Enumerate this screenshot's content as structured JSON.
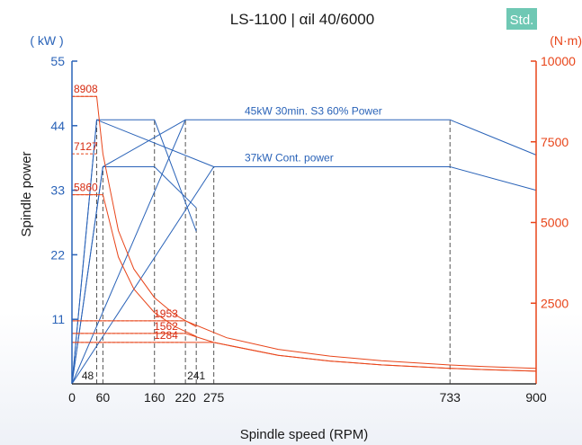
{
  "chart_data": {
    "type": "line",
    "title": "LS-1100  | αil 40/6000",
    "badge": "Std.",
    "xlabel": "Spindle speed (RPM)",
    "ylabel_left": "Spindle power",
    "ylabel_left_unit": "( kW )",
    "ylabel_right_unit": "(N·m)",
    "xlim": [
      0,
      900
    ],
    "ylim_left": [
      0,
      55
    ],
    "ylim_right": [
      0,
      10000
    ],
    "x_ticks": [
      "0",
      "60",
      "160",
      "220",
      "275",
      "733",
      "900"
    ],
    "x_ticks_values": [
      0,
      60,
      160,
      220,
      275,
      733,
      900
    ],
    "x_ticks_small": [
      "48",
      "241"
    ],
    "x_ticks_small_values": [
      48,
      241
    ],
    "y_ticks_left": [
      "55",
      "44",
      "33",
      "22",
      "11"
    ],
    "y_ticks_left_values": [
      55,
      44,
      33,
      22,
      11
    ],
    "y_ticks_right": [
      "10000",
      "7500",
      "5000",
      "2500"
    ],
    "y_ticks_right_values": [
      10000,
      7500,
      5000,
      2500
    ],
    "torque_labels": [
      "8908",
      "7127",
      "5860",
      "1953",
      "1562",
      "1284"
    ],
    "torque_label_values": [
      8908,
      7127,
      5860,
      1953,
      1562,
      1284
    ],
    "torque_label_x": [
      0,
      0,
      0,
      220,
      220,
      220
    ],
    "power_labels": [
      "45kW 30min. S3 60% Power",
      "37kW Cont. power"
    ],
    "power_label_values": [
      45,
      37
    ],
    "power_label_x": [
      300,
      300
    ],
    "vlines": [
      48,
      60,
      160,
      220,
      241,
      275,
      733
    ],
    "series": [
      {
        "axis": "left",
        "x": [
          0,
          48,
          160,
          241
        ],
        "y": [
          0,
          45,
          45,
          26
        ]
      },
      {
        "axis": "left",
        "x": [
          0,
          60,
          160,
          241
        ],
        "y": [
          0,
          37,
          37,
          30
        ]
      },
      {
        "axis": "left",
        "x": [
          0,
          220,
          733,
          900
        ],
        "y": [
          0,
          45,
          45,
          39
        ]
      },
      {
        "axis": "left",
        "x": [
          0,
          275,
          733,
          900
        ],
        "y": [
          0,
          37,
          37,
          33
        ]
      },
      {
        "axis": "left",
        "x": [
          0,
          60,
          220
        ],
        "y": [
          0,
          37,
          45
        ]
      },
      {
        "axis": "left",
        "x": [
          0,
          48,
          275
        ],
        "y": [
          0,
          45,
          37
        ]
      },
      {
        "axis": "right",
        "x": [
          0,
          48,
          60,
          90,
          120,
          160,
          200,
          241
        ],
        "y": [
          8908,
          8908,
          7127,
          4750,
          3560,
          2670,
          2140,
          1770
        ]
      },
      {
        "axis": "right",
        "x": [
          0,
          60,
          90,
          120,
          160,
          200,
          241
        ],
        "y": [
          5860,
          5860,
          3930,
          2940,
          2210,
          1770,
          1470
        ]
      },
      {
        "axis": "right",
        "x": [
          0,
          220,
          300,
          400,
          500,
          600,
          733,
          800,
          900
        ],
        "y": [
          1953,
          1953,
          1430,
          1070,
          860,
          716,
          586,
          537,
          478
        ]
      },
      {
        "axis": "right",
        "x": [
          0,
          220,
          275,
          400,
          500,
          600,
          733,
          800,
          900
        ],
        "y": [
          1562,
          1562,
          1284,
          883,
          707,
          589,
          482,
          442,
          393
        ]
      },
      {
        "axis": "right",
        "x": [
          0,
          275,
          400,
          500,
          600,
          733,
          800,
          900
        ],
        "y": [
          1284,
          1284,
          883,
          707,
          589,
          482,
          442,
          393
        ]
      }
    ],
    "colors": {
      "power": "#2a63b8",
      "torque": "#e8451a",
      "badge": "#6fc8b4",
      "grid": "#555555"
    }
  }
}
